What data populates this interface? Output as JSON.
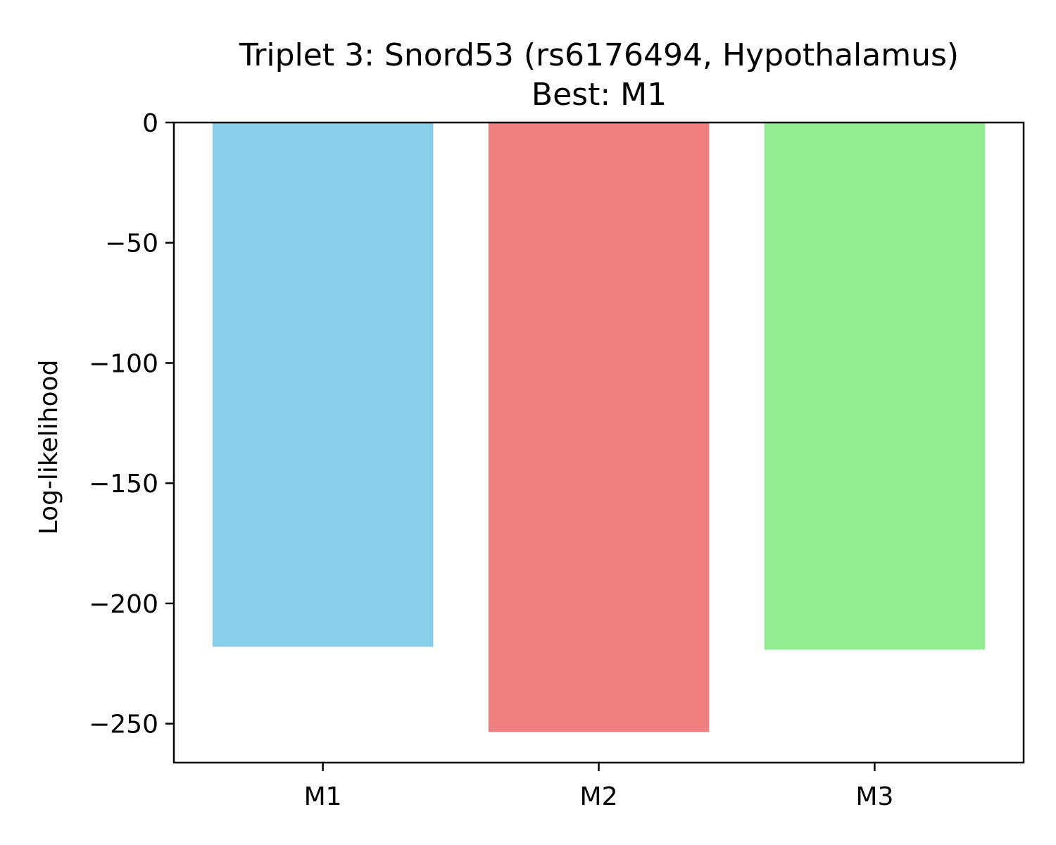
{
  "chart_data": {
    "type": "bar",
    "title_line1": "Triplet 3: Snord53 (rs6176494, Hypothalamus)",
    "title_line2": "Best: M1",
    "xlabel": "",
    "ylabel": "Log-likelihood",
    "categories": [
      "M1",
      "M2",
      "M3"
    ],
    "values": [
      -218,
      -253.5,
      -219.2
    ],
    "colors": [
      "#87CEEB",
      "#F08080",
      "#90EE90"
    ],
    "ylim": [
      -266.2,
      0
    ],
    "yticks": [
      0,
      -50,
      -100,
      -150,
      -200,
      -250
    ],
    "ytick_labels": [
      "0",
      "−50",
      "−100",
      "−150",
      "−200",
      "−250"
    ],
    "grid": false,
    "legend": "none"
  }
}
